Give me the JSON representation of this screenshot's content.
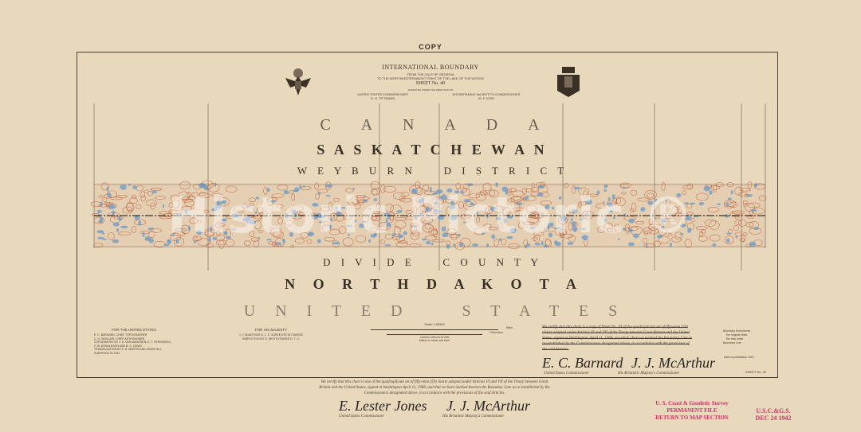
{
  "header": {
    "copy": "COPY",
    "title": "INTERNATIONAL BOUNDARY",
    "line1": "FROM THE GULF OF GEORGIA",
    "line2": "TO THE NORTHWESTERNMOST POINT OF THE LAKE OF THE WOODS",
    "sheet": "SHEET No. 40",
    "surveyed": "SURVEYED UNDER THE DIRECTION OF",
    "us_comm_title": "UNITED STATES COMMISSIONER",
    "us_comm_name": "O. H. TITTMANN",
    "br_comm_title": "HIS BRITANNIC MAJESTY'S COMMISSIONER",
    "br_comm_name": "W. F. KING"
  },
  "labels": {
    "country_north": "C A N A D A",
    "province": "S A S K A T C H E W A N",
    "district": "W E Y B U R N   D I S T R I C T",
    "county": "D I V I D E   C O U N T Y",
    "state": "N O R T H   D A K O T A",
    "country_south": "U N I T E D   S T A T E S"
  },
  "credits": {
    "us_title": "FOR THE UNITED STATES",
    "us_lines": [
      "E. C. BARNARD, CHIEF TOPOGRAPHER",
      "C. H. SINCLAIR, CHIEF ASTRONOMER",
      "TOPOGRAPHY BY J. H. VAN WAGENEN, E. T. PERKINSON,",
      "F. W. DONALDSON AND B. C. LEWIS",
      "TRIANGULATION BY E. B. MARTIN AND JESSE HILL",
      "SURVEYED IN 1911."
    ],
    "br_title": "FOR HIS MAJESTY",
    "br_lines": [
      "J. J. McARTHUR D. L. S. SURVEYOR IN CHARGE",
      "INSPECTION BY G. WHITE-FRASER D. T. S."
    ]
  },
  "scale": {
    "title": "Scale 1:62500",
    "miles": "Miles",
    "km": "Kilometers",
    "contour": "Contour interval 20 feet",
    "datum": "Datum is mean sea level"
  },
  "certificate_struck": "We certify that this chart is a copy of Sheet No. 40 of the quadruplicate set of fifty-nine (59) charts adopted under Articles VI and VII of the Treaty between Great Britain and the United States, signed at Washington, April 11, 1908, on which chart we marked the Boundary Line as re-established by the Commissioners designated above, in accordance with the provisions of the said Articles.",
  "certificate": "We certify that this chart is one of the quadruplicate set of fifty-nine (59) charts adopted under Articles VI and VII of the Treaty between Great Britain and the United States, signed at Washington April 11, 1908, and that we have marked thereon the Boundary Line as re-established by the Commissioners designated above, in accordance with the provisions of the said Articles.",
  "signatures": {
    "us_sig": "E. Lester Jones",
    "us_title": "United States Commissioner",
    "br_sig": "J. J. McArthur",
    "br_title": "His Britannic Majesty's Commissioner",
    "us_sig2": "E. C. Barnard",
    "br_sig2": "J. J. McArthur"
  },
  "legend": {
    "monuments": "Boundary Monuments",
    "original": "the original sides",
    "new": "the new sides",
    "line": "Boundary Line",
    "publication": "Date of publication 1913",
    "sheet_no": "SHEET No. 40"
  },
  "stamps": {
    "s1_l1": "U. S. Coast & Geodetic Survey",
    "s1_l2": "PERMANENT FILE",
    "s1_l3": "RETURN TO MAP SECTION",
    "s2_l1": "U.S.C.&G.S.",
    "s2_l2": "DEC 24 1942"
  },
  "watermark": "Historic Pictoric ®",
  "colors": {
    "paper": "#e8d8bc",
    "contours": "#c0603c",
    "water": "#6a9ac8",
    "ink": "#3a3026",
    "stamp": "#d0306a"
  }
}
